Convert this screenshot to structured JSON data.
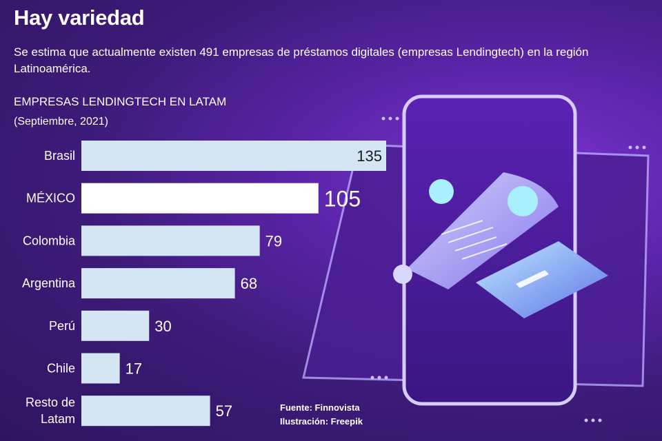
{
  "header": {
    "title": "Hay variedad",
    "subtitle": "Se estima que actualmente existen 491 empresas de préstamos digitales (empresas Lendingtech) en la región Latinoamérica."
  },
  "chart_data": {
    "type": "bar",
    "orientation": "horizontal",
    "title": "EMPRESAS LENDINGTECH EN LATAM",
    "subtitle": "(Septiembre, 2021)",
    "categories": [
      "Brasil",
      "MÉXICO",
      "Colombia",
      "Argentina",
      "Perú",
      "Chile",
      "Resto de Latam"
    ],
    "category_lines": [
      [
        "Brasil"
      ],
      [
        "MÉXICO"
      ],
      [
        "Colombia"
      ],
      [
        "Argentina"
      ],
      [
        "Perú"
      ],
      [
        "Chile"
      ],
      [
        "Resto de",
        "Latam"
      ]
    ],
    "values": [
      135,
      105,
      79,
      68,
      30,
      17,
      57
    ],
    "highlight": "MÉXICO",
    "colors": {
      "bar": "#d4e6f4",
      "highlight_bar": "#ffffff"
    }
  },
  "footer": {
    "source": "Fuente: Finnovista",
    "illustration": "Ilustración: Freepik"
  }
}
